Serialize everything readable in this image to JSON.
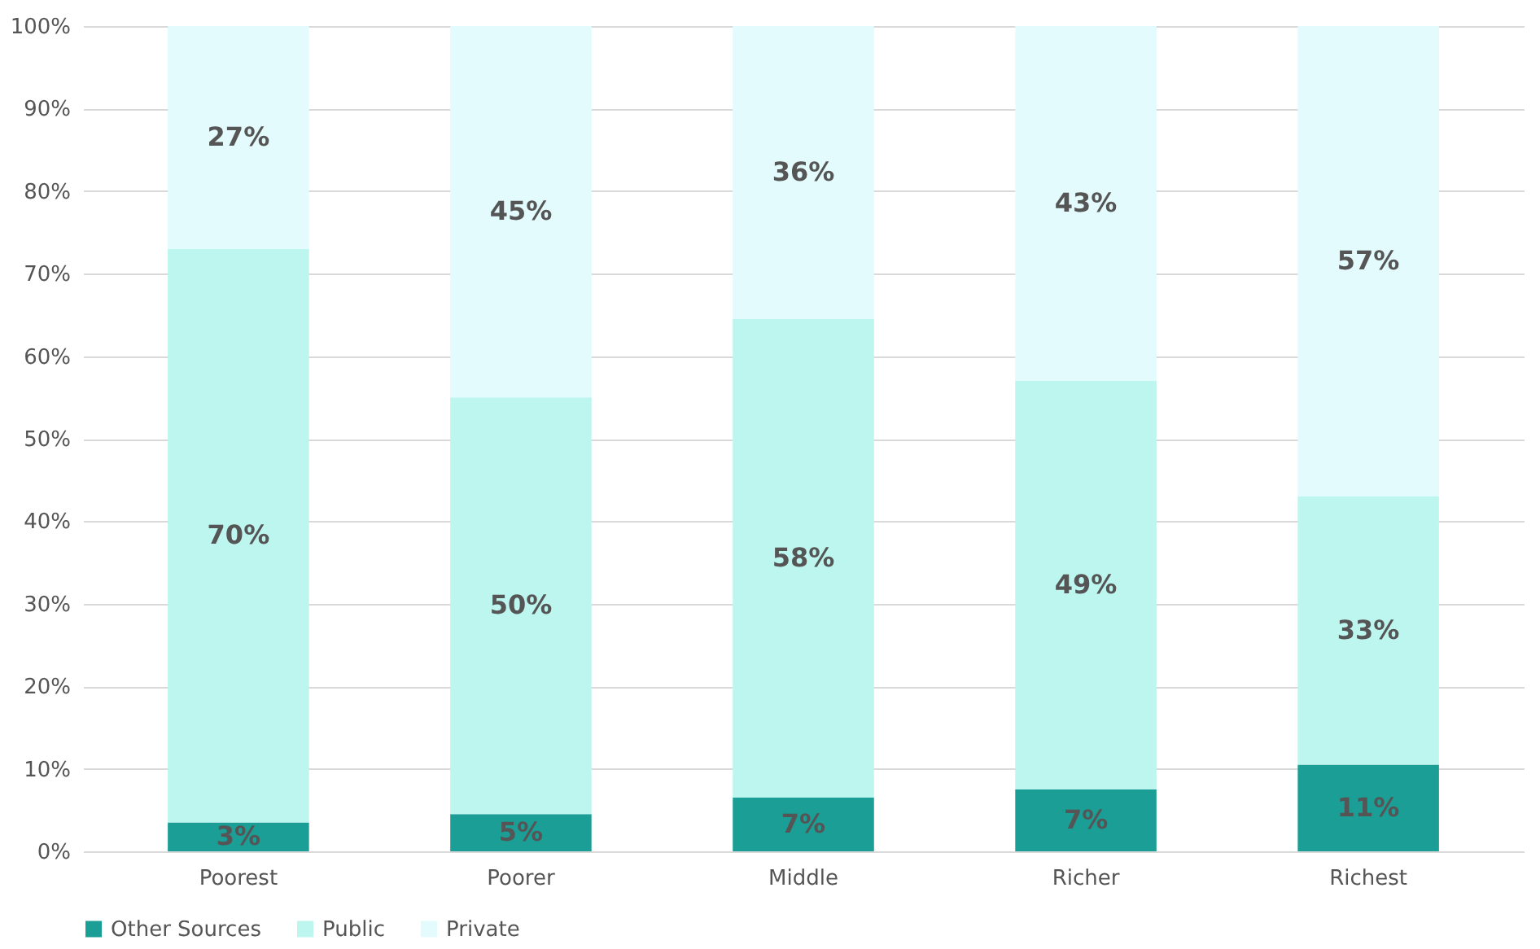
{
  "chart_data": {
    "type": "bar",
    "stacked": true,
    "categories": [
      "Poorest",
      "Poorer",
      "Middle",
      "Richer",
      "Richest"
    ],
    "series": [
      {
        "name": "Other Sources",
        "color": "#1a9e96",
        "values": [
          3.5,
          4.5,
          6.5,
          7.5,
          10.5
        ],
        "value_labels": [
          "3%",
          "5%",
          "7%",
          "7%",
          "11%"
        ]
      },
      {
        "name": "Public",
        "color": "#bdf5ef",
        "values": [
          69.5,
          50.5,
          58,
          49.5,
          32.5
        ],
        "value_labels": [
          "70%",
          "50%",
          "58%",
          "49%",
          "33%"
        ]
      },
      {
        "name": "Private",
        "color": "#e3fbfc",
        "values": [
          27,
          45,
          35.5,
          43,
          57
        ],
        "value_labels": [
          "27%",
          "45%",
          "36%",
          "43%",
          "57%"
        ]
      }
    ],
    "ylim": [
      0,
      100
    ],
    "yticks": [
      {
        "value": 0,
        "label": "0%"
      },
      {
        "value": 10,
        "label": "10%"
      },
      {
        "value": 20,
        "label": "20%"
      },
      {
        "value": 30,
        "label": "30%"
      },
      {
        "value": 40,
        "label": "40%"
      },
      {
        "value": 50,
        "label": "50%"
      },
      {
        "value": 60,
        "label": "60%"
      },
      {
        "value": 70,
        "label": "70%"
      },
      {
        "value": 80,
        "label": "80%"
      },
      {
        "value": 90,
        "label": "90%"
      },
      {
        "value": 100,
        "label": "100%"
      }
    ],
    "grid": "y",
    "legend": "bottom"
  }
}
